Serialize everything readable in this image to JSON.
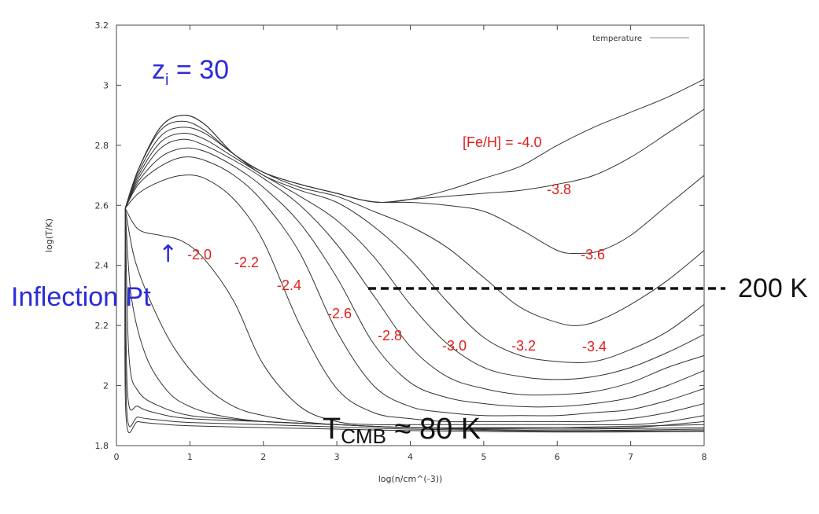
{
  "chart_data": {
    "type": "line",
    "xlabel": "log(n/cm^(-3))",
    "ylabel": "log(T/K)",
    "xlim": [
      0,
      8
    ],
    "ylim": [
      1.8,
      3.2
    ],
    "x_ticks": [
      "0",
      "1",
      "2",
      "3",
      "4",
      "5",
      "6",
      "7",
      "8"
    ],
    "y_ticks": [
      "1.8",
      "2",
      "2.2",
      "2.4",
      "2.6",
      "2.8",
      "3",
      "3.2"
    ],
    "legend": {
      "entries": [
        "temperature"
      ],
      "position": "top-right"
    },
    "series": [
      {
        "label": "[Fe/H] = -4.0",
        "points": [
          [
            0.12,
            2.59
          ],
          [
            0.3,
            2.72
          ],
          [
            0.6,
            2.86
          ],
          [
            0.9,
            2.9
          ],
          [
            1.2,
            2.87
          ],
          [
            1.6,
            2.77
          ],
          [
            2,
            2.71
          ],
          [
            2.5,
            2.67
          ],
          [
            3,
            2.64
          ],
          [
            3.3,
            2.62
          ],
          [
            3.6,
            2.61
          ],
          [
            4,
            2.62
          ],
          [
            4.5,
            2.65
          ],
          [
            5,
            2.69
          ],
          [
            5.5,
            2.73
          ],
          [
            6,
            2.8
          ],
          [
            6.5,
            2.86
          ],
          [
            7,
            2.91
          ],
          [
            7.5,
            2.96
          ],
          [
            8,
            3.02
          ]
        ]
      },
      {
        "label": "-3.8",
        "points": [
          [
            0.12,
            2.59
          ],
          [
            0.3,
            2.72
          ],
          [
            0.6,
            2.86
          ],
          [
            0.9,
            2.9
          ],
          [
            1.2,
            2.87
          ],
          [
            1.6,
            2.77
          ],
          [
            2,
            2.71
          ],
          [
            2.5,
            2.67
          ],
          [
            3,
            2.64
          ],
          [
            3.3,
            2.62
          ],
          [
            3.6,
            2.61
          ],
          [
            4,
            2.62
          ],
          [
            4.5,
            2.63
          ],
          [
            5,
            2.64
          ],
          [
            5.5,
            2.65
          ],
          [
            6,
            2.67
          ],
          [
            6.5,
            2.7
          ],
          [
            7,
            2.76
          ],
          [
            7.5,
            2.84
          ],
          [
            8,
            2.92
          ]
        ]
      },
      {
        "label": "-3.6",
        "points": [
          [
            0.12,
            2.59
          ],
          [
            0.3,
            2.72
          ],
          [
            0.6,
            2.86
          ],
          [
            0.9,
            2.9
          ],
          [
            1.2,
            2.87
          ],
          [
            1.6,
            2.77
          ],
          [
            2,
            2.71
          ],
          [
            2.5,
            2.67
          ],
          [
            3,
            2.64
          ],
          [
            3.3,
            2.62
          ],
          [
            3.6,
            2.61
          ],
          [
            4,
            2.61
          ],
          [
            4.5,
            2.6
          ],
          [
            5,
            2.58
          ],
          [
            5.5,
            2.52
          ],
          [
            6,
            2.45
          ],
          [
            6.3,
            2.44
          ],
          [
            6.6,
            2.45
          ],
          [
            7,
            2.5
          ],
          [
            7.5,
            2.6
          ],
          [
            8,
            2.7
          ]
        ]
      },
      {
        "label": "-3.4",
        "points": [
          [
            0.12,
            2.59
          ],
          [
            0.3,
            2.72
          ],
          [
            0.6,
            2.85
          ],
          [
            0.9,
            2.88
          ],
          [
            1.2,
            2.85
          ],
          [
            1.6,
            2.77
          ],
          [
            2,
            2.71
          ],
          [
            2.5,
            2.66
          ],
          [
            3,
            2.63
          ],
          [
            3.5,
            2.58
          ],
          [
            4,
            2.53
          ],
          [
            4.5,
            2.46
          ],
          [
            5,
            2.36
          ],
          [
            5.5,
            2.26
          ],
          [
            6,
            2.21
          ],
          [
            6.3,
            2.2
          ],
          [
            6.6,
            2.22
          ],
          [
            7,
            2.27
          ],
          [
            7.5,
            2.35
          ],
          [
            8,
            2.45
          ]
        ]
      },
      {
        "label": "-3.2",
        "points": [
          [
            0.12,
            2.59
          ],
          [
            0.3,
            2.71
          ],
          [
            0.6,
            2.83
          ],
          [
            0.9,
            2.86
          ],
          [
            1.2,
            2.84
          ],
          [
            1.6,
            2.77
          ],
          [
            2,
            2.7
          ],
          [
            2.5,
            2.65
          ],
          [
            3,
            2.61
          ],
          [
            3.5,
            2.53
          ],
          [
            4,
            2.42
          ],
          [
            4.5,
            2.28
          ],
          [
            5,
            2.16
          ],
          [
            5.5,
            2.1
          ],
          [
            6,
            2.08
          ],
          [
            6.5,
            2.08
          ],
          [
            7,
            2.12
          ],
          [
            7.5,
            2.18
          ],
          [
            8,
            2.27
          ]
        ]
      },
      {
        "label": "-3.0",
        "points": [
          [
            0.12,
            2.59
          ],
          [
            0.3,
            2.7
          ],
          [
            0.6,
            2.81
          ],
          [
            0.9,
            2.84
          ],
          [
            1.2,
            2.82
          ],
          [
            1.6,
            2.76
          ],
          [
            2,
            2.7
          ],
          [
            2.5,
            2.63
          ],
          [
            3,
            2.55
          ],
          [
            3.5,
            2.43
          ],
          [
            4,
            2.27
          ],
          [
            4.5,
            2.14
          ],
          [
            5,
            2.06
          ],
          [
            5.5,
            2.03
          ],
          [
            6,
            2.02
          ],
          [
            6.5,
            2.03
          ],
          [
            7,
            2.06
          ],
          [
            7.5,
            2.11
          ],
          [
            8,
            2.17
          ]
        ]
      },
      {
        "label": "-2.8",
        "points": [
          [
            0.12,
            2.59
          ],
          [
            0.3,
            2.69
          ],
          [
            0.6,
            2.79
          ],
          [
            0.9,
            2.82
          ],
          [
            1.2,
            2.8
          ],
          [
            1.6,
            2.75
          ],
          [
            2,
            2.69
          ],
          [
            2.5,
            2.6
          ],
          [
            3,
            2.47
          ],
          [
            3.5,
            2.3
          ],
          [
            4,
            2.13
          ],
          [
            4.5,
            2.03
          ],
          [
            5,
            1.99
          ],
          [
            5.5,
            1.97
          ],
          [
            6,
            1.97
          ],
          [
            6.5,
            1.98
          ],
          [
            7,
            2.01
          ],
          [
            7.5,
            2.06
          ],
          [
            8,
            2.1
          ]
        ]
      },
      {
        "label": "-2.6",
        "points": [
          [
            0.12,
            2.59
          ],
          [
            0.3,
            2.68
          ],
          [
            0.6,
            2.76
          ],
          [
            0.9,
            2.79
          ],
          [
            1.2,
            2.78
          ],
          [
            1.6,
            2.73
          ],
          [
            2,
            2.66
          ],
          [
            2.5,
            2.54
          ],
          [
            3,
            2.36
          ],
          [
            3.5,
            2.14
          ],
          [
            4,
            2.01
          ],
          [
            4.5,
            1.96
          ],
          [
            5,
            1.94
          ],
          [
            5.5,
            1.93
          ],
          [
            6,
            1.93
          ],
          [
            6.5,
            1.94
          ],
          [
            7,
            1.96
          ],
          [
            7.5,
            2
          ],
          [
            8,
            2.05
          ]
        ]
      },
      {
        "label": "-2.4",
        "points": [
          [
            0.12,
            2.59
          ],
          [
            0.3,
            2.67
          ],
          [
            0.6,
            2.73
          ],
          [
            0.9,
            2.76
          ],
          [
            1.2,
            2.75
          ],
          [
            1.6,
            2.7
          ],
          [
            2,
            2.61
          ],
          [
            2.5,
            2.44
          ],
          [
            3,
            2.18
          ],
          [
            3.5,
            2
          ],
          [
            4,
            1.93
          ],
          [
            4.5,
            1.91
          ],
          [
            5,
            1.9
          ],
          [
            5.5,
            1.9
          ],
          [
            6,
            1.9
          ],
          [
            6.5,
            1.91
          ],
          [
            7,
            1.92
          ],
          [
            7.5,
            1.95
          ],
          [
            8,
            1.99
          ]
        ]
      },
      {
        "label": "-2.2",
        "points": [
          [
            0.12,
            2.59
          ],
          [
            0.3,
            2.64
          ],
          [
            0.6,
            2.68
          ],
          [
            0.9,
            2.7
          ],
          [
            1.2,
            2.69
          ],
          [
            1.6,
            2.62
          ],
          [
            2,
            2.48
          ],
          [
            2.5,
            2.2
          ],
          [
            3,
            1.99
          ],
          [
            3.5,
            1.91
          ],
          [
            4,
            1.89
          ],
          [
            4.5,
            1.88
          ],
          [
            5,
            1.88
          ],
          [
            5.5,
            1.88
          ],
          [
            6,
            1.88
          ],
          [
            6.5,
            1.88
          ],
          [
            7,
            1.89
          ],
          [
            7.5,
            1.91
          ],
          [
            8,
            1.94
          ]
        ]
      },
      {
        "label": "-2.0",
        "points": [
          [
            0.12,
            2.59
          ],
          [
            0.3,
            2.52
          ],
          [
            0.6,
            2.5
          ],
          [
            0.9,
            2.48
          ],
          [
            1.2,
            2.42
          ],
          [
            1.6,
            2.28
          ],
          [
            2,
            2.07
          ],
          [
            2.5,
            1.93
          ],
          [
            3,
            1.88
          ],
          [
            3.5,
            1.87
          ],
          [
            4,
            1.87
          ],
          [
            5,
            1.87
          ],
          [
            6,
            1.87
          ],
          [
            7,
            1.87
          ],
          [
            7.5,
            1.88
          ],
          [
            8,
            1.9
          ]
        ]
      },
      {
        "points": [
          [
            0.12,
            2.59
          ],
          [
            0.25,
            2.42
          ],
          [
            0.5,
            2.26
          ],
          [
            0.8,
            2.12
          ],
          [
            1.2,
            2
          ],
          [
            1.6,
            1.93
          ],
          [
            2,
            1.9
          ],
          [
            2.5,
            1.88
          ],
          [
            3,
            1.87
          ],
          [
            4,
            1.86
          ],
          [
            5,
            1.86
          ],
          [
            6,
            1.86
          ],
          [
            7,
            1.86
          ],
          [
            8,
            1.88
          ]
        ]
      },
      {
        "points": [
          [
            0.12,
            2.59
          ],
          [
            0.2,
            2.3
          ],
          [
            0.4,
            2.1
          ],
          [
            0.7,
            1.98
          ],
          [
            1,
            1.93
          ],
          [
            1.4,
            1.9
          ],
          [
            2,
            1.88
          ],
          [
            3,
            1.87
          ],
          [
            4,
            1.86
          ],
          [
            6,
            1.86
          ],
          [
            8,
            1.87
          ]
        ]
      },
      {
        "points": [
          [
            0.12,
            2.59
          ],
          [
            0.17,
            2.1
          ],
          [
            0.3,
            1.98
          ],
          [
            0.6,
            1.93
          ],
          [
            1,
            1.9
          ],
          [
            1.5,
            1.89
          ],
          [
            2,
            1.88
          ],
          [
            3,
            1.87
          ],
          [
            4,
            1.86
          ],
          [
            6,
            1.855
          ],
          [
            8,
            1.86
          ]
        ]
      },
      {
        "points": [
          [
            0.12,
            2.59
          ],
          [
            0.15,
            1.98
          ],
          [
            0.3,
            1.93
          ],
          [
            0.6,
            1.905
          ],
          [
            1,
            1.89
          ],
          [
            2,
            1.88
          ],
          [
            3,
            1.87
          ],
          [
            4,
            1.86
          ],
          [
            6,
            1.85
          ],
          [
            8,
            1.855
          ]
        ]
      },
      {
        "points": [
          [
            0.12,
            2.59
          ],
          [
            0.14,
            1.92
          ],
          [
            0.3,
            1.895
          ],
          [
            0.6,
            1.885
          ],
          [
            1,
            1.877
          ],
          [
            2,
            1.87
          ],
          [
            3,
            1.862
          ],
          [
            4,
            1.855
          ],
          [
            6,
            1.848
          ],
          [
            8,
            1.85
          ]
        ]
      },
      {
        "points": [
          [
            0.12,
            2.59
          ],
          [
            0.13,
            1.9
          ],
          [
            0.3,
            1.88
          ],
          [
            0.6,
            1.872
          ],
          [
            1,
            1.866
          ],
          [
            2,
            1.86
          ],
          [
            3,
            1.855
          ],
          [
            4,
            1.85
          ],
          [
            6,
            1.845
          ],
          [
            8,
            1.847
          ]
        ]
      }
    ],
    "annotations": {
      "zi_main": "z",
      "zi_sub": "i",
      "zi_value": " = 30",
      "inflection": "Inflection Pt",
      "inflection_arrow": "↑",
      "line_200k": "200 K",
      "tcmb_main": "T",
      "tcmb_sub": "CMB",
      "tcmb_value": " ≈ 80 K"
    },
    "colors": {
      "curve": "#333333",
      "feh_label": "#e0201c",
      "annotation_blue": "#2b2bd9",
      "reference_line": "#111111"
    }
  }
}
